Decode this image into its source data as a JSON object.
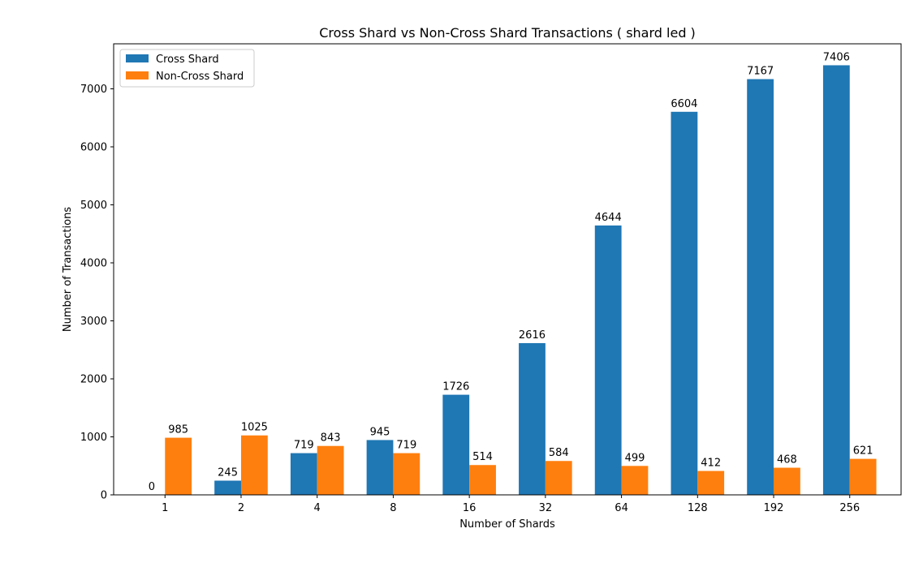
{
  "chart_data": {
    "type": "bar",
    "title": "Cross Shard vs Non-Cross Shard Transactions ( shard led )",
    "xlabel": "Number of Shards",
    "ylabel": "Number of Transactions",
    "categories": [
      "1",
      "2",
      "4",
      "8",
      "16",
      "32",
      "64",
      "128",
      "192",
      "256"
    ],
    "series": [
      {
        "name": "Cross Shard",
        "color": "#1f77b4",
        "values": [
          0,
          245,
          719,
          945,
          1726,
          2616,
          4644,
          6604,
          7167,
          7406
        ]
      },
      {
        "name": "Non-Cross Shard",
        "color": "#ff7f0e",
        "values": [
          985,
          1025,
          843,
          719,
          514,
          584,
          499,
          412,
          468,
          621
        ]
      }
    ],
    "yticks": [
      0,
      1000,
      2000,
      3000,
      4000,
      5000,
      6000,
      7000
    ],
    "ylim": [
      0,
      7776
    ],
    "grid": false,
    "legend": "top-left",
    "data_labels": true
  }
}
